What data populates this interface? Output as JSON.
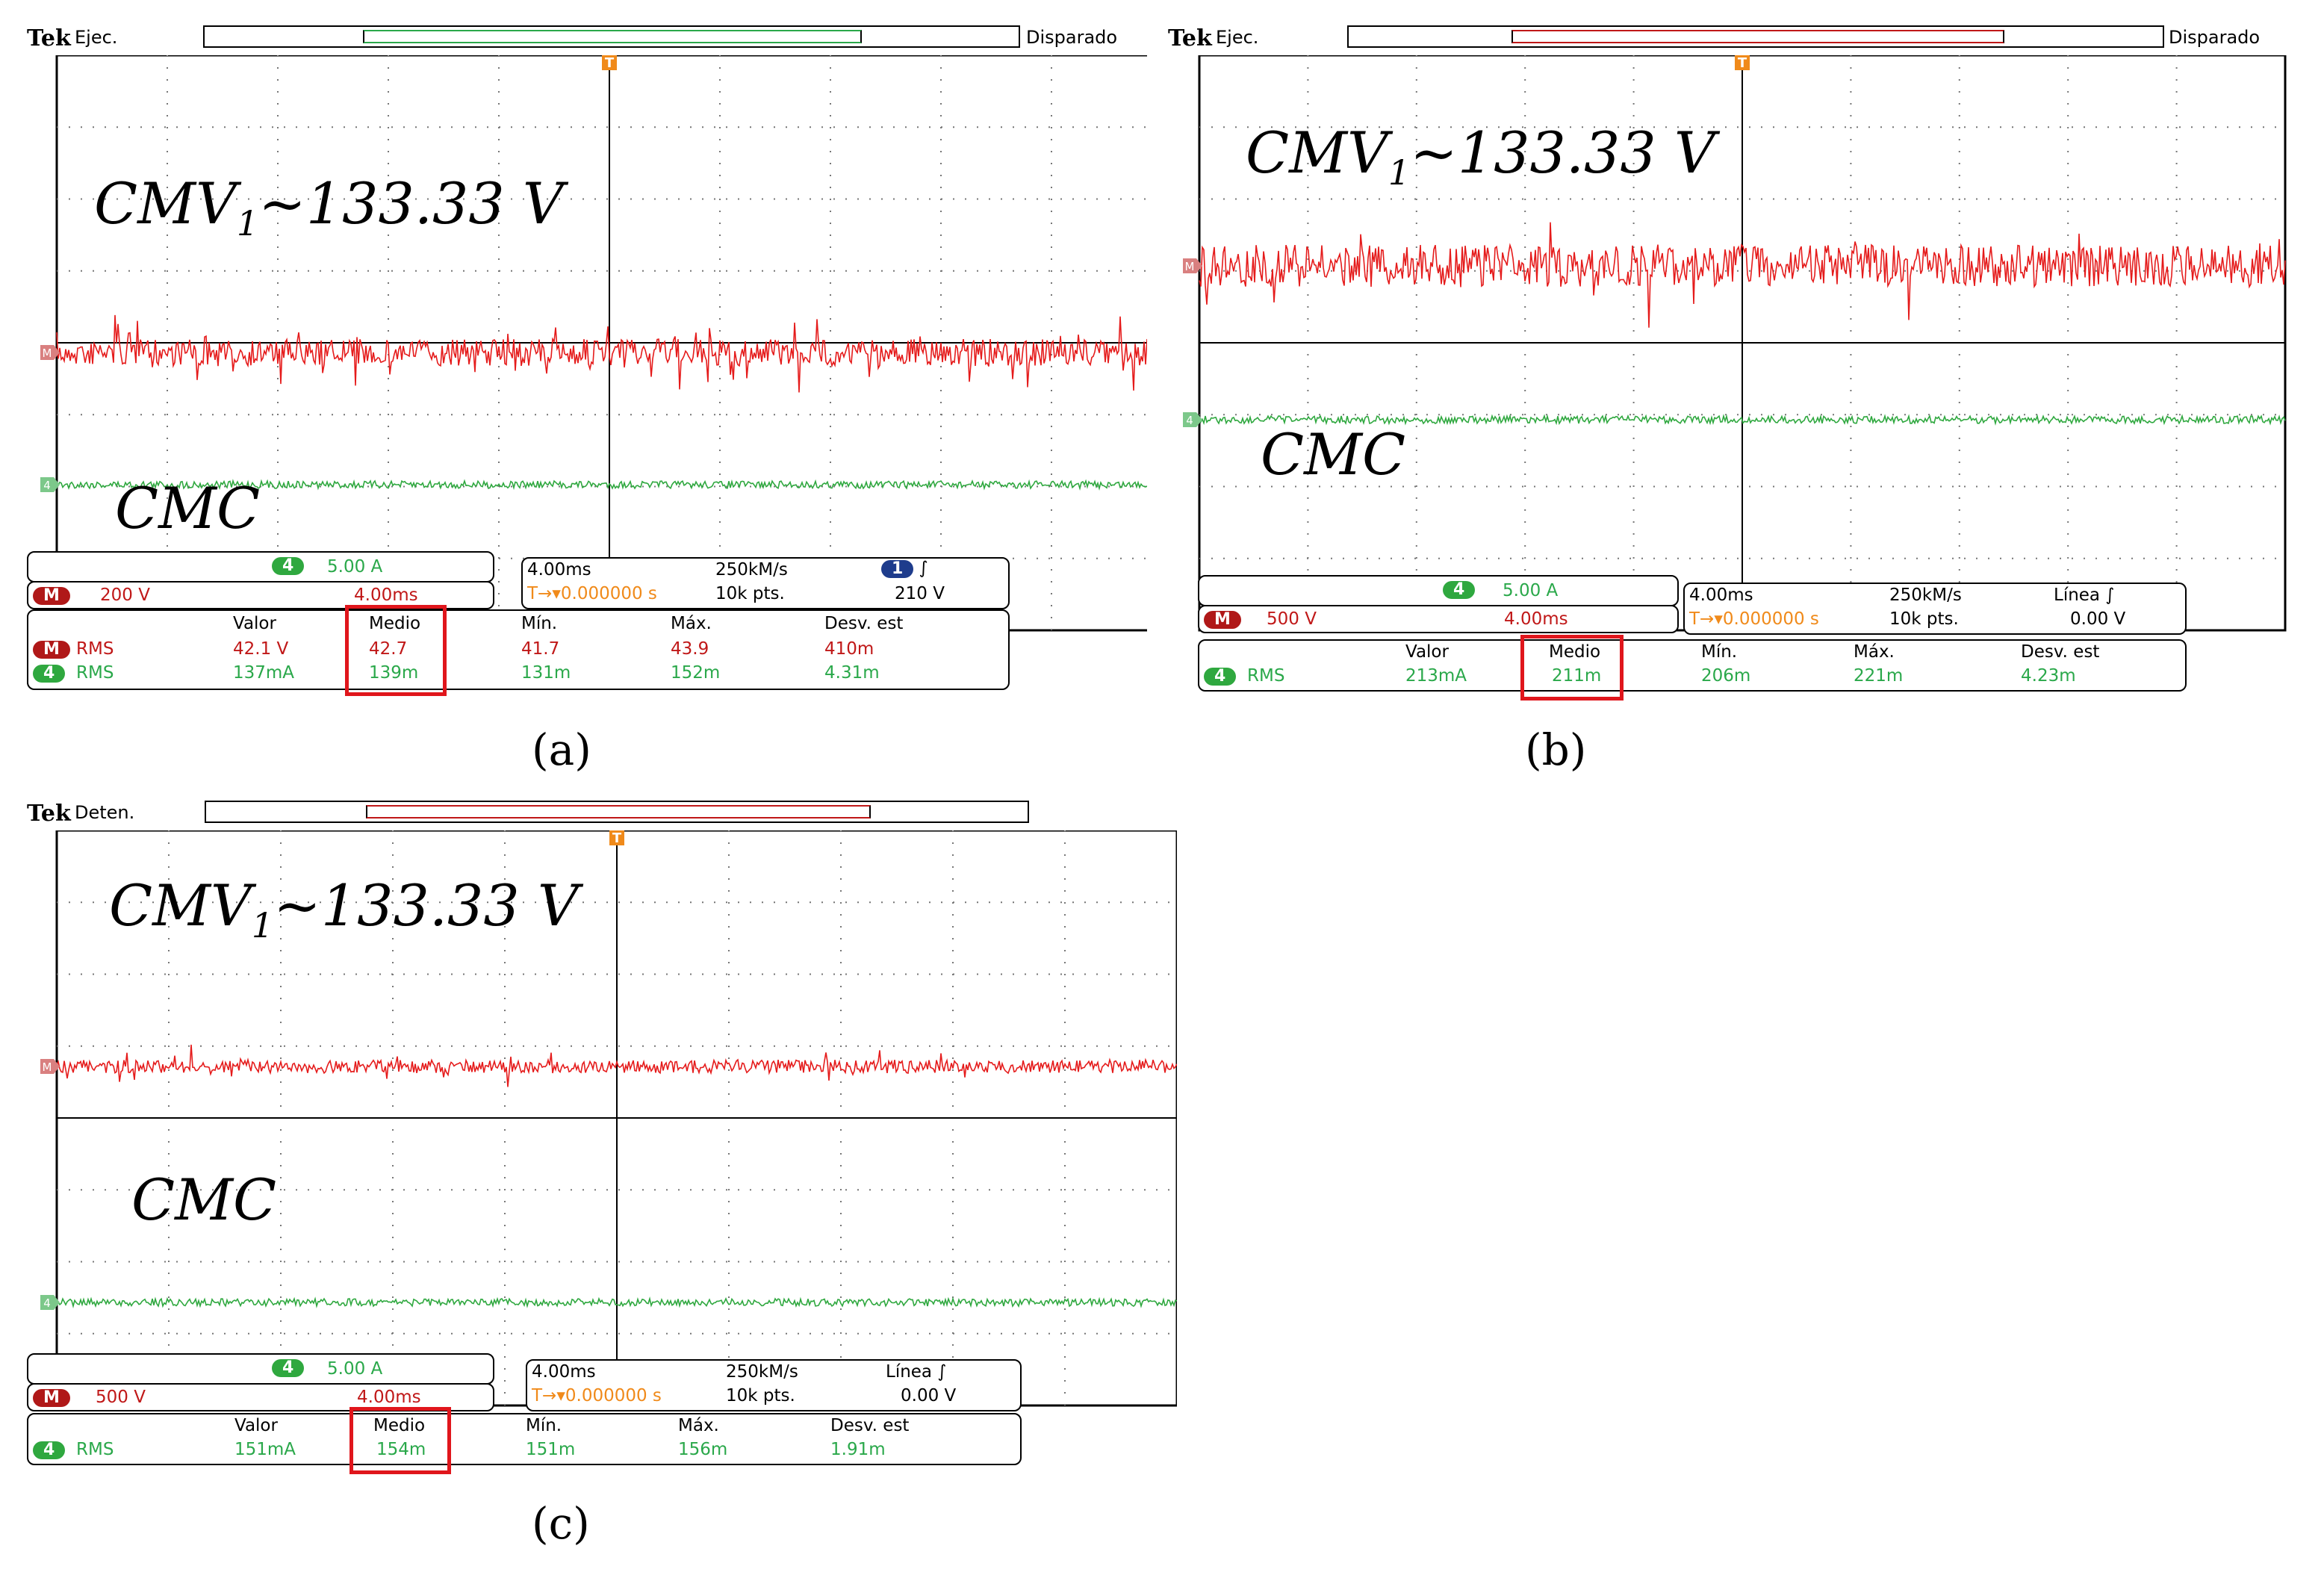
{
  "colors": {
    "ch_m": "#e51b1b",
    "ch_4": "#2fa83f",
    "trigger": "#f08a1a",
    "highlight": "#e0161c"
  },
  "panels": [
    {
      "id": "a",
      "caption": "(a)",
      "brand": "Tek",
      "run_status": "Ejec.",
      "trigger_status": "Disparado",
      "overlay_voltage": "CMV1~133.33 V",
      "overlay_current": "CMC",
      "marker_m": "M",
      "marker_4": "4",
      "trigger_marker": "T",
      "ch4_scale": "5.00 A",
      "chm_scale": "200 V",
      "chm_time": "4.00ms",
      "timebase": "4.00ms",
      "sample_rate": "250kM/s",
      "trigger_pos": "0.000000 s",
      "record_length": "10k pts.",
      "trigger_source_badge": "1",
      "trigger_level": "210 V",
      "trigger_type": "",
      "meas_headers": [
        "Valor",
        "Medio",
        "Mín.",
        "Máx.",
        "Desv. est"
      ],
      "meas_rows": [
        {
          "ch": "M",
          "type": "RMS",
          "values": [
            "42.1 V",
            "42.7",
            "41.7",
            "43.9",
            "410m"
          ],
          "color": "red"
        },
        {
          "ch": "4",
          "type": "RMS",
          "values": [
            "137mA",
            "139m",
            "131m",
            "152m",
            "4.31m"
          ],
          "color": "grn"
        }
      ]
    },
    {
      "id": "b",
      "caption": "(b)",
      "brand": "Tek",
      "run_status": "Ejec.",
      "trigger_status": "Disparado",
      "overlay_voltage": "CMV1~133.33 V",
      "overlay_current": "CMC",
      "marker_m": "M",
      "marker_4": "4",
      "trigger_marker": "T",
      "ch4_scale": "5.00 A",
      "chm_scale": "500 V",
      "chm_time": "4.00ms",
      "timebase": "4.00ms",
      "sample_rate": "250kM/s",
      "trigger_pos": "0.000000 s",
      "record_length": "10k pts.",
      "trigger_type": "Línea",
      "trigger_level": "0.00 V",
      "meas_headers": [
        "Valor",
        "Medio",
        "Mín.",
        "Máx.",
        "Desv. est"
      ],
      "meas_rows": [
        {
          "ch": "4",
          "type": "RMS",
          "values": [
            "213mA",
            "211m",
            "206m",
            "221m",
            "4.23m"
          ],
          "color": "grn"
        }
      ]
    },
    {
      "id": "c",
      "caption": "(c)",
      "brand": "Tek",
      "run_status": "Deten.",
      "trigger_status": "",
      "overlay_voltage": "CMV1~133.33 V",
      "overlay_current": "CMC",
      "marker_m": "M",
      "marker_4": "4",
      "trigger_marker": "T",
      "ch4_scale": "5.00 A",
      "chm_scale": "500 V",
      "chm_time": "4.00ms",
      "timebase": "4.00ms",
      "sample_rate": "250kM/s",
      "trigger_pos": "0.000000 s",
      "record_length": "10k pts.",
      "trigger_type": "Línea",
      "trigger_level": "0.00 V",
      "meas_headers": [
        "Valor",
        "Medio",
        "Mín.",
        "Máx.",
        "Desv. est"
      ],
      "meas_rows": [
        {
          "ch": "4",
          "type": "RMS",
          "values": [
            "151mA",
            "154m",
            "151m",
            "156m",
            "1.91m"
          ],
          "color": "grn"
        }
      ]
    }
  ]
}
